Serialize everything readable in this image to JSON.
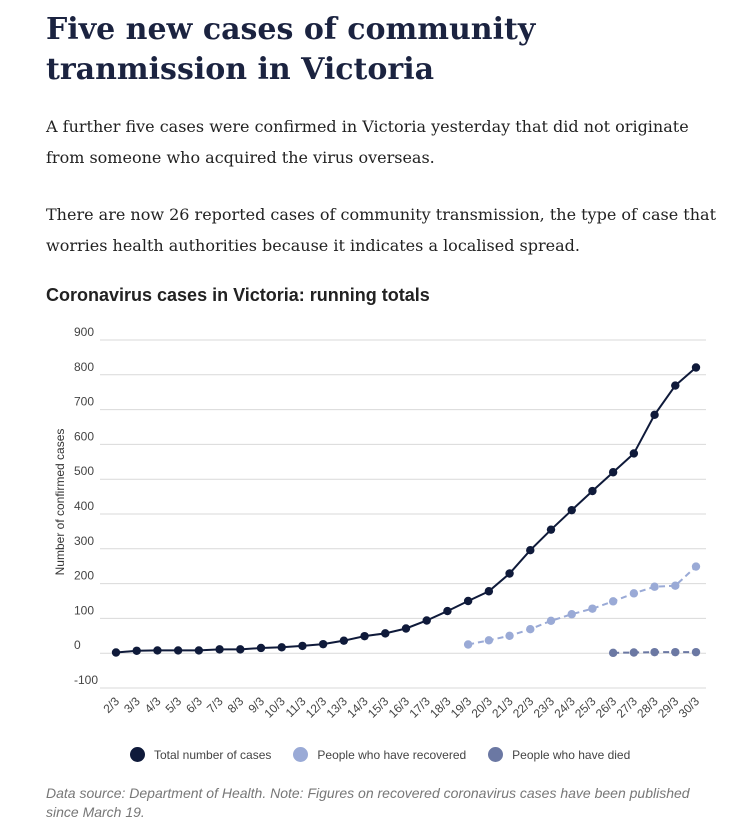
{
  "article": {
    "headline": "Five new cases of community tranmission in Victoria",
    "paragraphs": [
      "A further five cases were confirmed in Victoria yesterday that did not originate from someone who acquired the virus overseas.",
      "There are now 26 reported cases of community transmission, the type of case that worries health authorities because it indicates a localised spread."
    ],
    "source": "Data source: Department of Health. Note: Figures on recovered coronavirus cases have been published since March 19."
  },
  "chart_data": {
    "type": "line",
    "title": "Coronavirus cases in Victoria: running totals",
    "ylabel": "Number of confirmed cases",
    "xlabel": "",
    "ylim": [
      -100,
      900
    ],
    "yticks": [
      -100,
      0,
      100,
      200,
      300,
      400,
      500,
      600,
      700,
      800,
      900
    ],
    "grid": true,
    "legend_position": "bottom",
    "x": [
      "2/3",
      "3/3",
      "4/3",
      "5/3",
      "6/3",
      "7/3",
      "8/3",
      "9/3",
      "10/3",
      "11/3",
      "12/3",
      "13/3",
      "14/3",
      "15/3",
      "16/3",
      "17/3",
      "18/3",
      "19/3",
      "20/3",
      "21/3",
      "22/3",
      "23/3",
      "24/3",
      "25/3",
      "26/3",
      "27/3",
      "28/3",
      "29/3",
      "30/3"
    ],
    "series": [
      {
        "name": "Total number of cases",
        "color": "#0f1a3a",
        "dashed": false,
        "values": [
          2,
          7,
          8,
          8,
          8,
          11,
          11,
          15,
          17,
          21,
          26,
          36,
          49,
          57,
          71,
          94,
          121,
          150,
          178,
          229,
          296,
          355,
          411,
          466,
          520,
          574,
          685,
          769,
          821
        ]
      },
      {
        "name": "People who have recovered",
        "color": "#9aaad6",
        "dashed": true,
        "values": [
          null,
          null,
          null,
          null,
          null,
          null,
          null,
          null,
          null,
          null,
          null,
          null,
          null,
          null,
          null,
          null,
          null,
          25,
          37,
          50,
          69,
          93,
          112,
          128,
          149,
          172,
          191,
          194,
          249
        ]
      },
      {
        "name": "People who have died",
        "color": "#6b78a3",
        "dashed": true,
        "values": [
          null,
          null,
          null,
          null,
          null,
          null,
          null,
          null,
          null,
          null,
          null,
          null,
          null,
          null,
          null,
          null,
          null,
          null,
          null,
          null,
          null,
          null,
          null,
          null,
          1,
          2,
          3,
          3,
          3
        ]
      }
    ]
  }
}
